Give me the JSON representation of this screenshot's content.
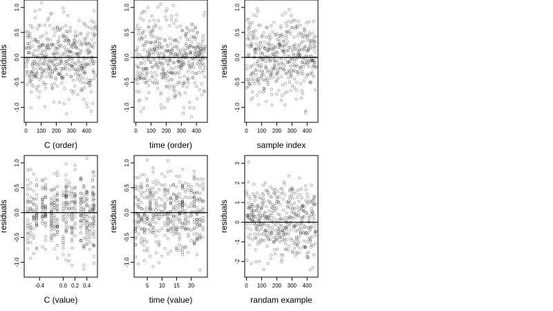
{
  "chart_data": [
    {
      "type": "scatter",
      "xlabel": "C (order)",
      "ylabel": "residuals",
      "xlim": [
        -12,
        472
      ],
      "ylim": [
        -1.3,
        1.15
      ],
      "xticks": [
        0,
        100,
        200,
        300,
        400
      ],
      "yticks": [
        -1.0,
        -0.5,
        0.0,
        0.5,
        1.0
      ],
      "ytick_labels": [
        "-1.0",
        "-0.5",
        "0.0",
        "0.5",
        "1.0"
      ],
      "hline": 0,
      "points": {
        "n": 460,
        "x_mode": "index",
        "seed": 11,
        "sd": 0.4,
        "clip": [
          -1.2,
          1.1
        ]
      }
    },
    {
      "type": "scatter",
      "xlabel": "time (order)",
      "ylabel": "residuals",
      "xlim": [
        -12,
        472
      ],
      "ylim": [
        -1.3,
        1.15
      ],
      "xticks": [
        0,
        100,
        200,
        300,
        400
      ],
      "yticks": [
        -1.0,
        -0.5,
        0.0,
        0.5,
        1.0
      ],
      "ytick_labels": [
        "-1.0",
        "-0.5",
        "0.0",
        "0.5",
        "1.0"
      ],
      "hline": 0,
      "points": {
        "n": 460,
        "x_mode": "index",
        "seed": 23,
        "sd": 0.4,
        "clip": [
          -1.2,
          1.1
        ]
      }
    },
    {
      "type": "scatter",
      "xlabel": "sample index",
      "ylabel": "residuals",
      "xlim": [
        -12,
        472
      ],
      "ylim": [
        -1.3,
        1.15
      ],
      "xticks": [
        0,
        100,
        200,
        300,
        400
      ],
      "yticks": [
        -1.0,
        -0.5,
        0.0,
        0.5,
        1.0
      ],
      "ytick_labels": [
        "-1.0",
        "-0.5",
        "0.0",
        "0.5",
        "1.0"
      ],
      "hline": 0,
      "points": {
        "n": 460,
        "x_mode": "index",
        "seed": 37,
        "sd": 0.4,
        "clip": [
          -1.2,
          1.1
        ]
      }
    },
    {
      "type": "scatter",
      "xlabel": "C (value)",
      "ylabel": "residuals",
      "xlim": [
        -0.66,
        0.58
      ],
      "ylim": [
        -1.3,
        1.15
      ],
      "xticks": [
        -0.4,
        0.0,
        0.2,
        0.4
      ],
      "xtick_labels": [
        "-0.4",
        "0.0",
        "0.2",
        "0.4"
      ],
      "yticks": [
        -1.0,
        -0.5,
        0.0,
        0.5,
        1.0
      ],
      "ytick_labels": [
        "-1.0",
        "-0.5",
        "0.0",
        "0.5",
        "1.0"
      ],
      "hline": 0,
      "points": {
        "n": 460,
        "x_mode": "levels",
        "seed": 53,
        "sd": 0.4,
        "clip": [
          -1.2,
          1.1
        ],
        "levels": [
          -0.6,
          -0.55,
          -0.5,
          -0.45,
          -0.35,
          -0.3,
          -0.2,
          -0.15,
          -0.1,
          0.0,
          0.05,
          0.1,
          0.15,
          0.2,
          0.3,
          0.35,
          0.4,
          0.45,
          0.5,
          0.52
        ]
      }
    },
    {
      "type": "scatter",
      "xlabel": "time (value)",
      "ylabel": "residuals",
      "xlim": [
        0.5,
        25.5
      ],
      "ylim": [
        -1.3,
        1.15
      ],
      "xticks": [
        5,
        10,
        15,
        20
      ],
      "yticks": [
        -1.0,
        -0.5,
        0.0,
        0.5,
        1.0
      ],
      "ytick_labels": [
        "-1.0",
        "-0.5",
        "0.0",
        "0.5",
        "1.0"
      ],
      "hline": 0,
      "points": {
        "n": 460,
        "x_mode": "levels",
        "seed": 71,
        "sd": 0.4,
        "clip": [
          -1.2,
          1.1
        ],
        "levels": [
          1,
          2,
          3,
          4,
          5,
          6,
          7,
          8,
          9,
          10,
          11,
          12,
          13,
          14,
          15,
          16,
          17,
          18,
          19,
          20,
          21,
          22,
          23,
          24
        ]
      }
    },
    {
      "type": "scatter",
      "xlabel": "randam example",
      "ylabel": "residuals",
      "xlim": [
        -12,
        472
      ],
      "ylim": [
        -2.8,
        3.4
      ],
      "xticks": [
        0,
        100,
        200,
        300,
        400
      ],
      "yticks": [
        -2,
        -1,
        0,
        1,
        2,
        3
      ],
      "hline": 0,
      "points": {
        "n": 460,
        "x_mode": "index",
        "seed": 97,
        "sd": 1.0,
        "clip": [
          -2.5,
          3.1
        ]
      }
    }
  ]
}
